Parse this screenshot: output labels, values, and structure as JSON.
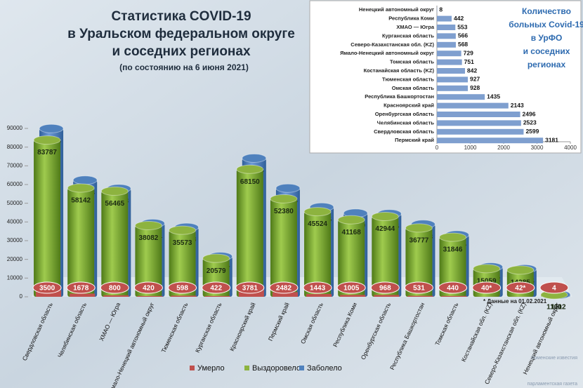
{
  "chart_data": [
    {
      "type": "bar",
      "title": [
        "Статистика COVID-19",
        "в Уральском федеральном округе",
        "и соседних регионах"
      ],
      "subtitle": "(по состоянию на 6 июня 2021)",
      "note": "* Данные на 01.02.2021",
      "categories": [
        "Свердловская область",
        "Челябинская область",
        "ХМАО — Югра",
        "Ямало-Ненецкий автономный округ",
        "Тюменская область",
        "Курганская область",
        "Красноярский край",
        "Пермский край",
        "Омская область",
        "Республика Коми",
        "Оренбургская область",
        "Республика Башкортостан",
        "Томская область",
        "Костанайская обл. (KZ)",
        "Северо-Казахстанская обл. (KZ)",
        "Ненецкий автономный округ"
      ],
      "series": [
        {
          "name": "Умерло",
          "color": "#c0504d",
          "values": [
            3500,
            1678,
            800,
            420,
            598,
            422,
            3781,
            2482,
            1443,
            1005,
            968,
            531,
            440,
            40,
            42,
            4
          ],
          "value_labels": [
            "3500",
            "1678",
            "800",
            "420",
            "598",
            "422",
            "3781",
            "2482",
            "1443",
            "1005",
            "968",
            "531",
            "440",
            "40*",
            "42*",
            "4"
          ]
        },
        {
          "name": "Выздоровело",
          "color": "#8db33f",
          "values": [
            83787,
            58142,
            56465,
            38082,
            35573,
            20579,
            68150,
            52380,
            45524,
            41168,
            42944,
            36777,
            31846,
            15059,
            14285,
            1100
          ]
        },
        {
          "name": "Заболело",
          "color": "#4f81bd",
          "values": [
            89886,
            62343,
            57818,
            39231,
            37098,
            21567,
            74074,
            58043,
            47895,
            44669,
            44354,
            38743,
            33037,
            15942,
            14895,
            1112
          ]
        }
      ],
      "ylim": [
        0,
        90000
      ],
      "yticks": [
        0,
        10000,
        20000,
        30000,
        40000,
        50000,
        60000,
        70000,
        80000,
        90000
      ],
      "grid": false
    },
    {
      "type": "hbar",
      "title": [
        "Количество",
        "больных Covid-19",
        "в УрФО",
        "и соседних",
        "регионах"
      ],
      "categories": [
        "Ненецкий автономный округ",
        "Республика Коми",
        "ХМАО — Югра",
        "Курганская область",
        "Северо-Казахстанская обл. (KZ)",
        "Ямало-Ненецкий автономный округ",
        "Томская область",
        "Костанайская область (KZ)",
        "Тюменская область",
        "Омская область",
        "Республика Башкортостан",
        "Красноярский край",
        "Оренбургская область",
        "Челябинская область",
        "Свердловская область",
        "Пермский край"
      ],
      "values": [
        8,
        442,
        553,
        566,
        568,
        729,
        751,
        842,
        927,
        928,
        1435,
        2143,
        2496,
        2523,
        2599,
        3181
      ],
      "color": "#7f9fcf",
      "xlim": [
        0,
        4000
      ],
      "xticks": [
        0,
        1000,
        2000,
        3000,
        4000
      ]
    }
  ],
  "watermark": [
    "тюменские известия",
    "парламентская газета"
  ]
}
